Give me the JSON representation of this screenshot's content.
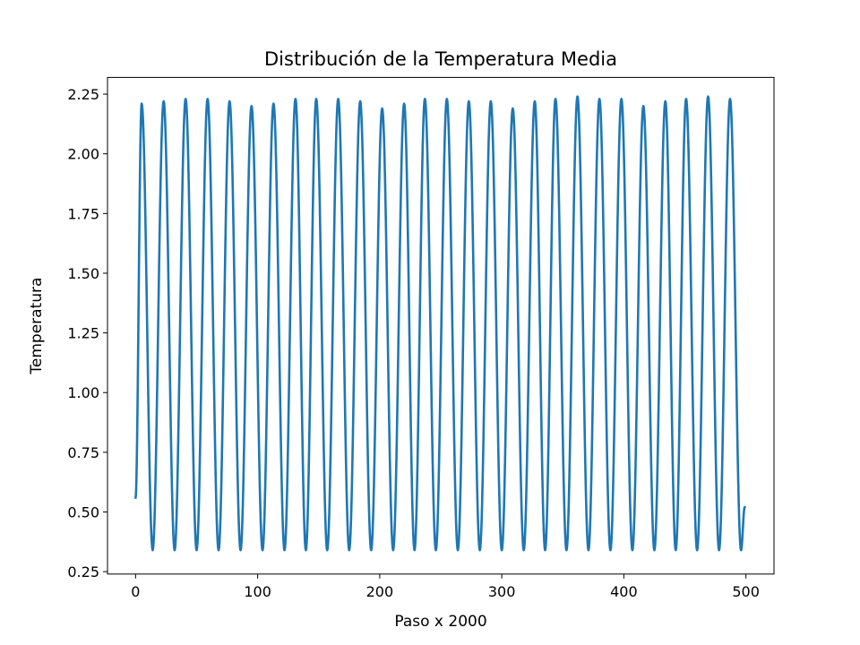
{
  "colors": {
    "series": "#1f77b4",
    "axes": "#000000",
    "background": "#ffffff"
  },
  "chart_data": {
    "type": "line",
    "title": "Distribución de la Temperatura Media",
    "xlabel": "Paso x 2000",
    "ylabel": "Temperatura",
    "xlim": [
      -23,
      523
    ],
    "ylim": [
      0.24,
      2.32
    ],
    "grid": false,
    "legend": "none",
    "x_ticks": [
      {
        "value": 0,
        "label": "0"
      },
      {
        "value": 100,
        "label": "100"
      },
      {
        "value": 200,
        "label": "200"
      },
      {
        "value": 300,
        "label": "300"
      },
      {
        "value": 400,
        "label": "400"
      },
      {
        "value": 500,
        "label": "500"
      }
    ],
    "y_ticks": [
      {
        "value": 0.25,
        "label": "0.25"
      },
      {
        "value": 0.5,
        "label": "0.50"
      },
      {
        "value": 0.75,
        "label": "0.75"
      },
      {
        "value": 1.0,
        "label": "1.00"
      },
      {
        "value": 1.25,
        "label": "1.25"
      },
      {
        "value": 1.5,
        "label": "1.50"
      },
      {
        "value": 1.75,
        "label": "1.75"
      },
      {
        "value": 2.0,
        "label": "2.00"
      },
      {
        "value": 2.25,
        "label": "2.25"
      }
    ],
    "series": [
      {
        "start": {
          "x": 0,
          "y": 0.56
        },
        "peaks": [
          {
            "x": 5,
            "y": 2.21
          },
          {
            "x": 23,
            "y": 2.22
          },
          {
            "x": 41,
            "y": 2.23
          },
          {
            "x": 59,
            "y": 2.23
          },
          {
            "x": 77,
            "y": 2.22
          },
          {
            "x": 95,
            "y": 2.2
          },
          {
            "x": 113,
            "y": 2.21
          },
          {
            "x": 131,
            "y": 2.23
          },
          {
            "x": 148,
            "y": 2.23
          },
          {
            "x": 166,
            "y": 2.23
          },
          {
            "x": 184,
            "y": 2.22
          },
          {
            "x": 202,
            "y": 2.19
          },
          {
            "x": 220,
            "y": 2.21
          },
          {
            "x": 237,
            "y": 2.23
          },
          {
            "x": 255,
            "y": 2.23
          },
          {
            "x": 273,
            "y": 2.22
          },
          {
            "x": 291,
            "y": 2.22
          },
          {
            "x": 309,
            "y": 2.19
          },
          {
            "x": 327,
            "y": 2.22
          },
          {
            "x": 344,
            "y": 2.23
          },
          {
            "x": 362,
            "y": 2.24
          },
          {
            "x": 380,
            "y": 2.23
          },
          {
            "x": 398,
            "y": 2.23
          },
          {
            "x": 416,
            "y": 2.2
          },
          {
            "x": 434,
            "y": 2.22
          },
          {
            "x": 451,
            "y": 2.23
          },
          {
            "x": 469,
            "y": 2.24
          },
          {
            "x": 487,
            "y": 2.23
          }
        ],
        "trough_value": 0.34,
        "end": {
          "x": 499,
          "y": 0.52
        }
      }
    ]
  }
}
